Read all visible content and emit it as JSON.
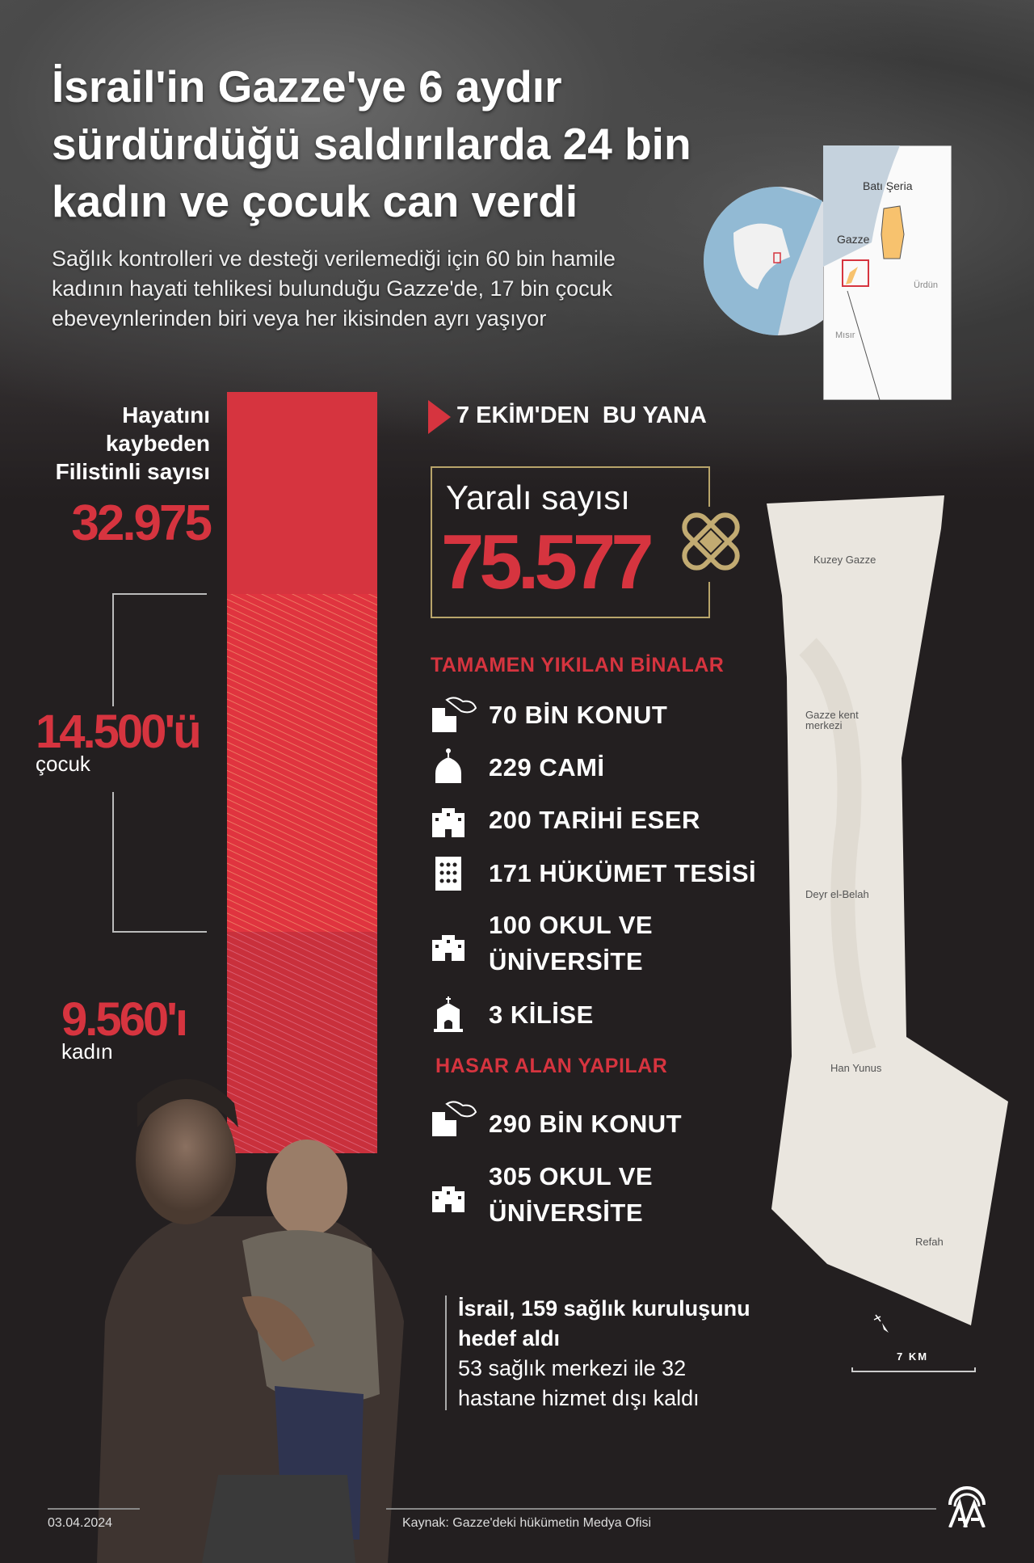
{
  "header": {
    "title": "İsrail'in Gazze'ye 6 aydır sürdürdüğü saldırılarda 24 bin kadın ve çocuk can verdi",
    "subtitle": "Sağlık kontrolleri ve desteği verilemediği için 60 bin hamile kadının hayati tehlikesi bulunduğu Gazze'de, 17 bin çocuk ebeveynlerinden biri veya her ikisinden ayrı yaşıyor"
  },
  "locator_map": {
    "labels": {
      "west_bank": "Batı Şeria",
      "gaza": "Gazze",
      "jordan": "Ürdün",
      "egypt": "Mısır"
    }
  },
  "deaths": {
    "label": "Hayatını kaybeden Filistinli sayısı",
    "total": "32.975",
    "children_value": "14.500'ü",
    "children_label": "çocuk",
    "women_value": "9.560'ı",
    "women_label": "kadın",
    "breakdown": {
      "total": 32975,
      "children": 14500,
      "women": 9560
    }
  },
  "since": {
    "label": "7 EKİM'DEN  BU YANA"
  },
  "injured": {
    "label": "Yaralı sayısı",
    "value": "75.577",
    "icon": "bandage-icon"
  },
  "destroyed": {
    "heading": "TAMAMEN YIKILAN BİNALAR",
    "items": [
      {
        "icon": "destroyed-building-icon",
        "label": "70 BİN KONUT"
      },
      {
        "icon": "mosque-icon",
        "label": "229 CAMİ"
      },
      {
        "icon": "historic-building-icon",
        "label": "200 TARİHİ ESER"
      },
      {
        "icon": "government-building-icon",
        "label": "171 HÜKÜMET TESİSİ"
      },
      {
        "icon": "school-icon",
        "label": "100 OKUL VE ÜNİVERSİTE"
      },
      {
        "icon": "church-icon",
        "label": "3 KİLİSE"
      }
    ]
  },
  "damaged": {
    "heading": "HASAR ALAN YAPILAR",
    "items": [
      {
        "icon": "destroyed-building-icon",
        "label": "290 BİN KONUT"
      },
      {
        "icon": "school-icon",
        "label": "305 OKUL VE ÜNİVERSİTE"
      }
    ]
  },
  "gaza_map": {
    "labels": [
      "Kuzey Gazze",
      "Gazze kent merkezi",
      "Deyr el-Belah",
      "Han Yunus",
      "Refah"
    ],
    "scale": "7 KM"
  },
  "health": {
    "headline": "İsrail, 159 sağlık kuruluşunu hedef aldı",
    "detail": "53 sağlık merkezi ile 32 hastane hizmet dışı kaldı"
  },
  "footer": {
    "date": "03.04.2024",
    "source": "Kaynak: Gazze'deki hükümetin Medya Ofisi",
    "logo": "AA"
  },
  "colors": {
    "accent": "#d6343f",
    "gold": "#b8a46a",
    "background": "#231f20"
  }
}
